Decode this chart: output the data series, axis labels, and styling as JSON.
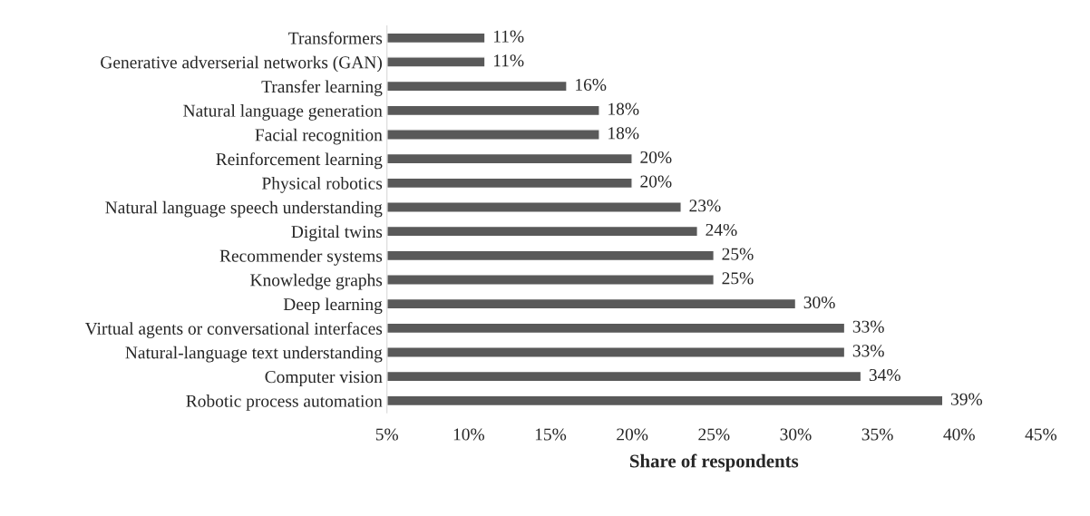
{
  "chart_data": {
    "type": "bar",
    "orientation": "horizontal",
    "xlabel": "Share of respondents",
    "categories": [
      "Transformers",
      "Generative adverserial networks (GAN)",
      "Transfer learning",
      "Natural language generation",
      "Facial recognition",
      "Reinforcement learning",
      "Physical robotics",
      "Natural language speech understanding",
      "Digital twins",
      "Recommender systems",
      "Knowledge graphs",
      "Deep learning",
      "Virtual agents or conversational interfaces",
      "Natural-language text understanding",
      "Computer vision",
      "Robotic process automation"
    ],
    "values": [
      11,
      11,
      16,
      18,
      18,
      20,
      20,
      23,
      24,
      25,
      25,
      30,
      33,
      33,
      34,
      39
    ],
    "value_labels": [
      "11%",
      "11%",
      "16%",
      "18%",
      "18%",
      "20%",
      "20%",
      "23%",
      "24%",
      "25%",
      "25%",
      "30%",
      "33%",
      "33%",
      "34%",
      "39%"
    ],
    "color": "#595959",
    "xlim": [
      5,
      45
    ],
    "xticks": [
      {
        "value": 5,
        "label": "5%"
      },
      {
        "value": 10,
        "label": "10%"
      },
      {
        "value": 15,
        "label": "15%"
      },
      {
        "value": 20,
        "label": "20%"
      },
      {
        "value": 25,
        "label": "25%"
      },
      {
        "value": 30,
        "label": "30%"
      },
      {
        "value": 35,
        "label": "35%"
      },
      {
        "value": 40,
        "label": "40%"
      },
      {
        "value": 45,
        "label": "45%"
      }
    ],
    "grid": false,
    "legend": false
  }
}
